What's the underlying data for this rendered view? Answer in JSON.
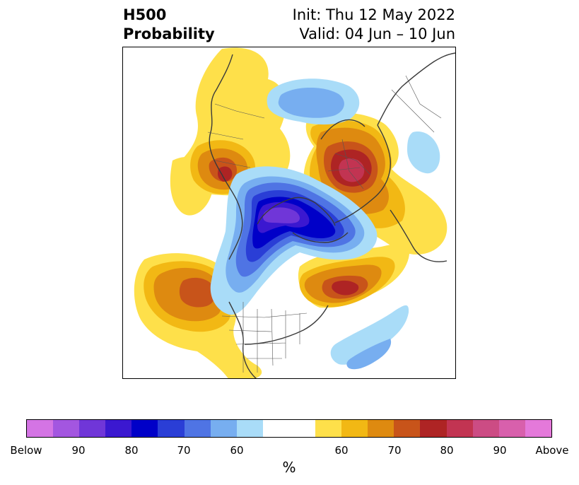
{
  "title": {
    "left_line1": "H500",
    "left_line2": "Probability",
    "right_line1": "Init: Thu 12 May 2022",
    "right_line2": "Valid: 04 Jun – 10 Jun"
  },
  "colorbar": {
    "colors": [
      "#d474e4",
      "#a356e0",
      "#7036d8",
      "#3b18d0",
      "#0000c8",
      "#2a3ed6",
      "#4f74e4",
      "#77aef0",
      "#a9dcf8",
      "#ffffff",
      "#ffffff",
      "#fee04a",
      "#f2b814",
      "#de8a10",
      "#c8541a",
      "#ae2424",
      "#c23452",
      "#cc4c84",
      "#d860ac",
      "#e479da"
    ],
    "labels": [
      "Below",
      "90",
      "80",
      "70",
      "60",
      "60",
      "70",
      "80",
      "90",
      "Above"
    ],
    "unit": "%"
  },
  "map": {
    "fill_colors": {
      "yellow": "#fee04a",
      "gold": "#f2b814",
      "orange": "#de8a10",
      "rust": "#c8541a",
      "red": "#ae2424",
      "crimson": "#c23452",
      "pink": "#cc4c84",
      "lightblue": "#a9dcf8",
      "skyblue": "#77aef0",
      "blue": "#4f74e4",
      "royal": "#2a3ed6",
      "navy": "#0000c8",
      "indigo": "#3b18d0",
      "violet": "#7036d8",
      "coast": "#3a3a3a"
    }
  }
}
